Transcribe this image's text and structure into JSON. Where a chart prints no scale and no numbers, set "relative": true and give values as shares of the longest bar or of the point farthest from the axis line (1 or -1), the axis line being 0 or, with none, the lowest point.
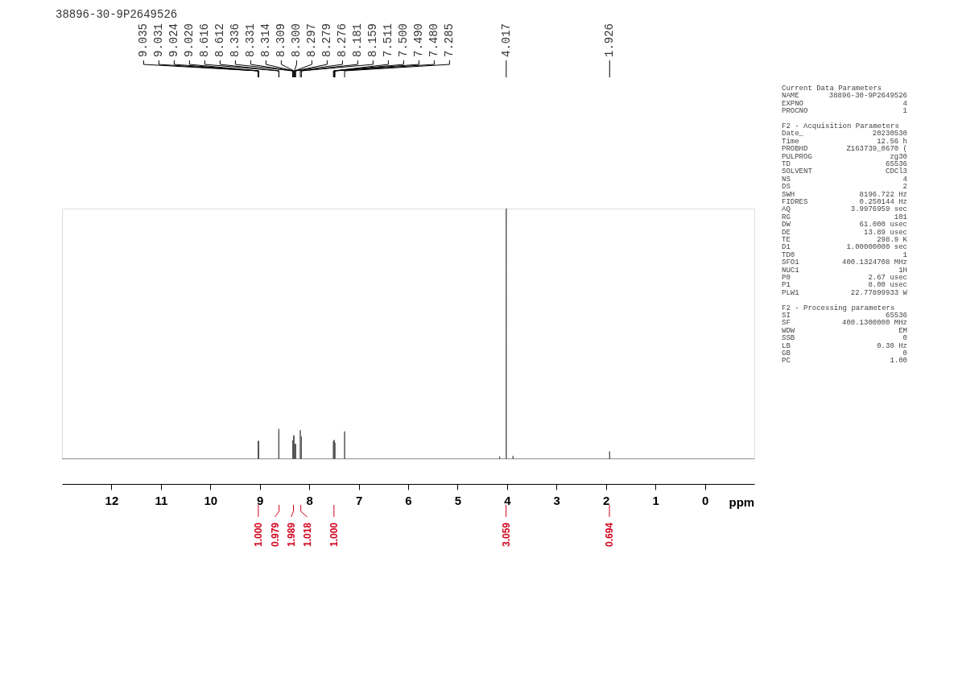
{
  "chart_data": {
    "type": "line",
    "title": "38896-30-9P2649526",
    "xlabel": "ppm",
    "relative": true,
    "grid": false,
    "xlim": [
      13.0,
      -1.0
    ],
    "xticks": [
      12,
      11,
      10,
      9,
      8,
      7,
      6,
      5,
      4,
      3,
      2,
      1,
      0
    ],
    "x": [
      13.0,
      9.0362,
      9.035,
      9.0338,
      9.0322,
      9.031,
      9.0298,
      9.0252,
      9.024,
      9.0228,
      9.0212,
      9.02,
      9.0188,
      8.6172,
      8.616,
      8.6148,
      8.6132,
      8.612,
      8.6108,
      8.3372,
      8.336,
      8.3348,
      8.3322,
      8.331,
      8.3298,
      8.3152,
      8.314,
      8.3128,
      8.3102,
      8.309,
      8.3078,
      8.3012,
      8.3,
      8.2988,
      8.2982,
      8.297,
      8.2958,
      8.2802,
      8.279,
      8.2778,
      8.2772,
      8.276,
      8.2748,
      8.1822,
      8.181,
      8.1798,
      8.1602,
      8.159,
      8.1578,
      7.5122,
      7.511,
      7.5098,
      7.5012,
      7.5,
      7.4988,
      7.4912,
      7.49,
      7.4888,
      7.4812,
      7.48,
      7.4788,
      7.2862,
      7.285,
      7.2838,
      4.1512,
      4.15,
      4.1488,
      4.0182,
      4.017,
      4.0158,
      3.8812,
      3.88,
      3.8788,
      1.9272,
      1.926,
      1.9248,
      -1.0
    ],
    "series": [
      {
        "color": "#555555",
        "values": [
          0,
          0,
          0.07,
          0,
          0,
          0.072,
          0,
          0,
          0.072,
          0,
          0,
          0.07,
          0,
          0,
          0.12,
          0,
          0,
          0.11,
          0,
          0,
          0.07,
          0,
          0,
          0.075,
          0,
          0,
          0.095,
          0,
          0,
          0.09,
          0,
          0,
          0.06,
          0,
          0,
          0.06,
          0,
          0,
          0.06,
          0,
          0,
          0.06,
          0,
          0,
          0.115,
          0,
          0,
          0.09,
          0,
          0,
          0.07,
          0,
          0,
          0.075,
          0,
          0,
          0.075,
          0,
          0,
          0.065,
          0,
          0,
          0.11,
          0,
          0,
          0.01,
          0,
          0,
          1.0,
          0,
          0,
          0.012,
          0,
          0,
          0.03,
          0,
          0
        ]
      }
    ],
    "annotations": [
      {
        "text": "9.035",
        "x": 9.035
      },
      {
        "text": "9.031",
        "x": 9.031
      },
      {
        "text": "9.024",
        "x": 9.024
      },
      {
        "text": "9.020",
        "x": 9.02
      },
      {
        "text": "8.616",
        "x": 8.616
      },
      {
        "text": "8.612",
        "x": 8.612
      },
      {
        "text": "8.336",
        "x": 8.336
      },
      {
        "text": "8.331",
        "x": 8.331
      },
      {
        "text": "8.314",
        "x": 8.314
      },
      {
        "text": "8.309",
        "x": 8.309
      },
      {
        "text": "8.300",
        "x": 8.3
      },
      {
        "text": "8.297",
        "x": 8.297
      },
      {
        "text": "8.279",
        "x": 8.279
      },
      {
        "text": "8.276",
        "x": 8.276
      },
      {
        "text": "8.181",
        "x": 8.181
      },
      {
        "text": "8.159",
        "x": 8.159
      },
      {
        "text": "7.511",
        "x": 7.511
      },
      {
        "text": "7.500",
        "x": 7.5
      },
      {
        "text": "7.490",
        "x": 7.49
      },
      {
        "text": "7.480",
        "x": 7.48
      },
      {
        "text": "7.285",
        "x": 7.285
      },
      {
        "text": "4.017",
        "x": 4.017
      },
      {
        "text": "1.926",
        "x": 1.926
      },
      {
        "text": "1.000",
        "x": 9.03
      },
      {
        "text": "0.979",
        "x": 8.61
      },
      {
        "text": "1.989",
        "x": 8.32
      },
      {
        "text": "1.018",
        "x": 8.17
      },
      {
        "text": "1.000",
        "x": 7.5
      },
      {
        "text": "3.059",
        "x": 4.02
      },
      {
        "text": "0.694",
        "x": 1.93
      },
      "Current Data Parameters",
      "NAME  38896-30-9P2649526",
      "EXPNO  4",
      "PROCNO  1",
      "F2 - Acquisition Parameters",
      "Date_  20230530",
      "Time  12.56 h",
      "PROBHD  Z163739_0670 (",
      "PULPROG  zg30",
      "TD  65536",
      "SOLVENT  CDCl3",
      "NS  4",
      "DS  2",
      "SWH  8196.722 Hz",
      "FIDRES  0.250144 Hz",
      "AQ  3.9976959 sec",
      "RG  101",
      "DW  61.000 usec",
      "DE  13.89 usec",
      "TE  298.9 K",
      "D1  1.00000000 sec",
      "TD0  1",
      "SFO1  400.1324708 MHz",
      "NUC1  1H",
      "P0  2.67 usec",
      "P1  8.00 usec",
      "PLW1  22.77899933 W",
      "F2 - Processing parameters",
      "SI  65536",
      "SF  400.1300000 MHz",
      "WDW  EM",
      "SSB  0",
      "LB  0.30 Hz",
      "GB  0",
      "PC  1.00"
    ]
  }
}
